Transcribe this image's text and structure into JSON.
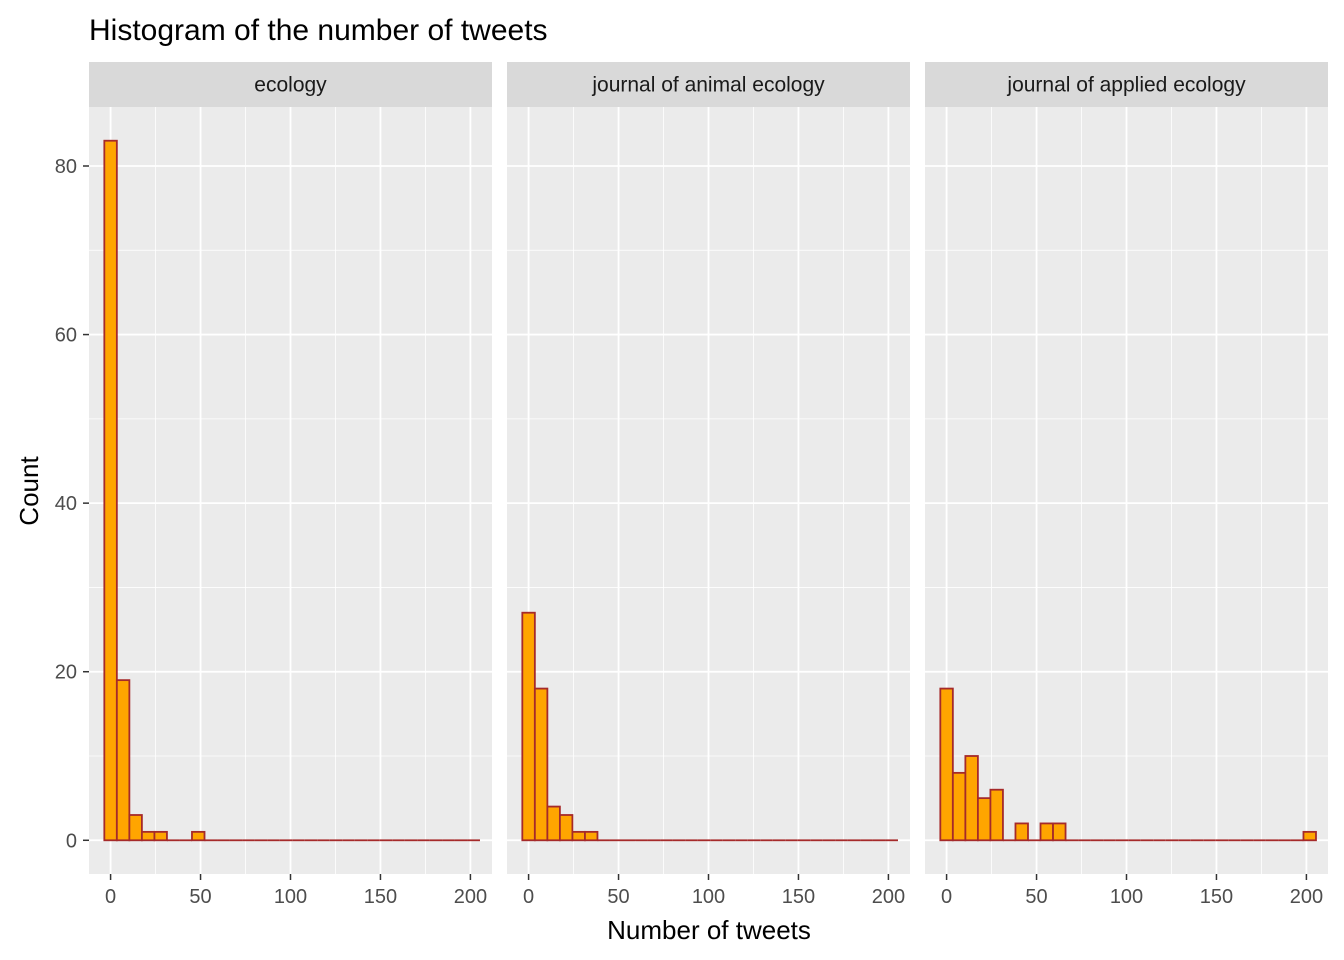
{
  "chart_data": {
    "type": "bar",
    "subtype": "faceted-histogram",
    "title": "Histogram of the number of tweets",
    "xlabel": "Number of tweets",
    "ylabel": "Count",
    "xlim": [
      -12,
      212
    ],
    "ylim": [
      -4,
      87
    ],
    "x_ticks": [
      0,
      50,
      100,
      150,
      200
    ],
    "y_ticks": [
      0,
      20,
      40,
      60,
      80
    ],
    "bin_width": 6.96,
    "bin_start": -3.48,
    "bin_count": 30,
    "colors": {
      "fill": "#FFA500",
      "outline": "#A52A2A",
      "panel_bg": "#EBEBEB",
      "strip_bg": "#D9D9D9",
      "grid": "#FFFFFF"
    },
    "facets": [
      {
        "name": "ecology",
        "counts": [
          83,
          19,
          3,
          1,
          1,
          0,
          0,
          1,
          0,
          0,
          0,
          0,
          0,
          0,
          0,
          0,
          0,
          0,
          0,
          0,
          0,
          0,
          0,
          0,
          0,
          0,
          0,
          0,
          0,
          0
        ]
      },
      {
        "name": "journal of animal ecology",
        "counts": [
          27,
          18,
          4,
          3,
          1,
          1,
          0,
          0,
          0,
          0,
          0,
          0,
          0,
          0,
          0,
          0,
          0,
          0,
          0,
          0,
          0,
          0,
          0,
          0,
          0,
          0,
          0,
          0,
          0,
          0
        ]
      },
      {
        "name": "journal of applied ecology",
        "counts": [
          18,
          8,
          10,
          5,
          6,
          0,
          2,
          0,
          2,
          2,
          0,
          0,
          0,
          0,
          0,
          0,
          0,
          0,
          0,
          0,
          0,
          0,
          0,
          0,
          0,
          0,
          0,
          0,
          0,
          1
        ]
      }
    ]
  }
}
